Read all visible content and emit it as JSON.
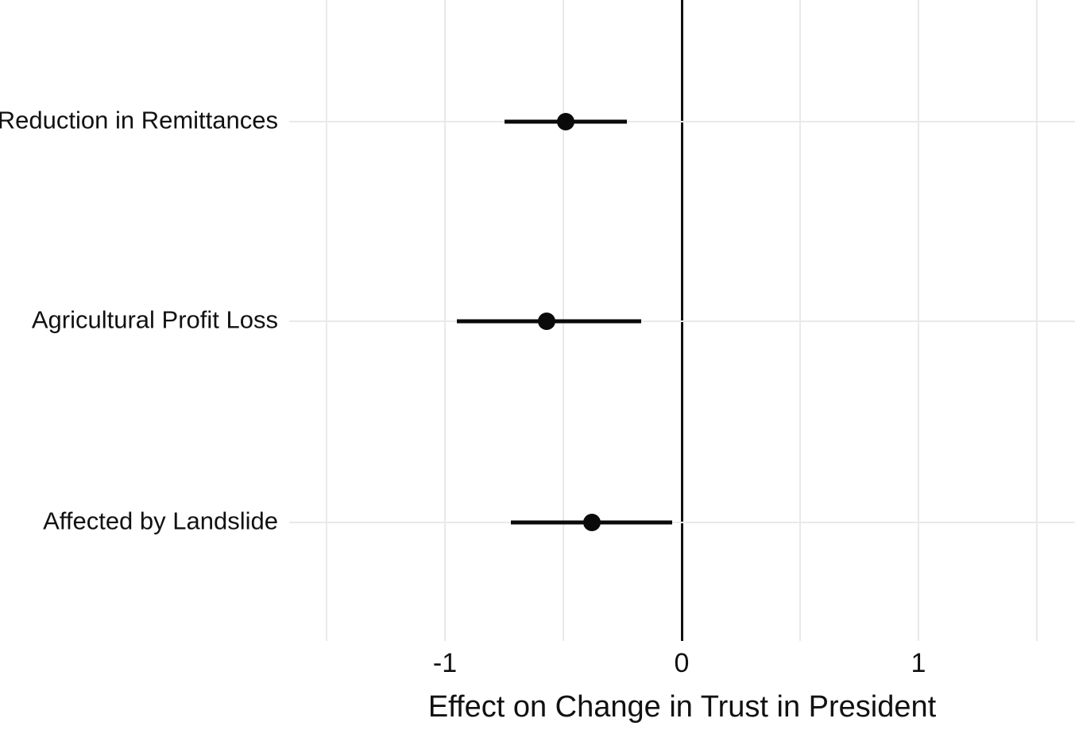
{
  "chart_data": {
    "type": "scatter",
    "subtype": "coefficient-dot-whisker",
    "title": "",
    "xlabel": "Effect on Change in Trust in President",
    "ylabel": "",
    "categories": [
      "Reduction in Remittances",
      "Agricultural Profit Loss",
      "Affected by Landslide"
    ],
    "points": [
      {
        "label": "Reduction in Remittances",
        "estimate": -0.49,
        "ci_low": -0.75,
        "ci_high": -0.23
      },
      {
        "label": "Agricultural Profit Loss",
        "estimate": -0.57,
        "ci_low": -0.95,
        "ci_high": -0.17
      },
      {
        "label": "Affected by Landslide",
        "estimate": -0.38,
        "ci_low": -0.72,
        "ci_high": -0.04
      }
    ],
    "x_ticks": [
      -1,
      0,
      1
    ],
    "x_tick_labels": [
      "-1",
      "0",
      "1"
    ],
    "x_gridlines": [
      -1.5,
      -1,
      -0.5,
      0,
      0.5,
      1,
      1.5
    ],
    "xlim": [
      -1.66,
      1.66
    ],
    "zero_reference_line": true,
    "grid": true,
    "legend": false,
    "colors": {
      "point": "#0a0a0a",
      "ci_bar": "#0a0a0a",
      "zero_line": "#111111",
      "gridline": "#e9e9e9",
      "text": "#111111",
      "background": "#ffffff"
    }
  }
}
